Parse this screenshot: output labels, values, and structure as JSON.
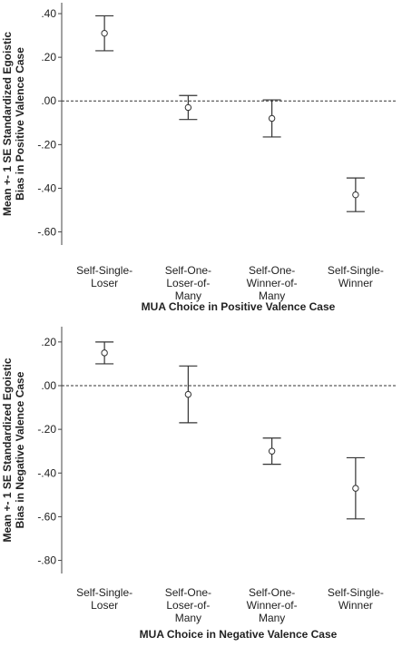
{
  "chart_data": [
    {
      "type": "errorbar",
      "ylabel": [
        "Mean +- 1 SE Standardized Egoistic",
        "Bias in Positive Valence Case"
      ],
      "xlabel": "MUA Choice in Positive Valence Case",
      "categories": [
        "Self-Single-Loser",
        "Self-One-Loser-of-Many",
        "Self-One-Winner-of-Many",
        "Self-Single-Winner"
      ],
      "values": [
        0.31,
        -0.03,
        -0.08,
        -0.43
      ],
      "errors": [
        0.08,
        0.055,
        0.085,
        0.077
      ],
      "ylim": [
        0.45,
        -0.66
      ],
      "yticks": [
        {
          "value": 0.4,
          "label": ".40"
        },
        {
          "value": 0.2,
          "label": ".20"
        },
        {
          "value": 0,
          "label": ".00"
        },
        {
          "value": -0.2,
          "label": "-.20"
        },
        {
          "value": -0.4,
          "label": "-.40"
        },
        {
          "value": -0.6,
          "label": "-.60"
        }
      ],
      "reference_line": 0,
      "color": "#333333"
    },
    {
      "type": "errorbar",
      "ylabel": [
        "Mean +- 1 SE Standardized Egoistic",
        "Bias in Negative Valence Case"
      ],
      "xlabel": "MUA Choice in Negative Valence Case",
      "categories": [
        "Self-Single-Loser",
        "Self-One-Loser-of-Many",
        "Self-One-Winner-of-Many",
        "Self-Single-Winner"
      ],
      "values": [
        0.15,
        -0.04,
        -0.3,
        -0.47
      ],
      "errors": [
        0.05,
        0.13,
        0.06,
        0.14
      ],
      "ylim": [
        0.27,
        -0.86
      ],
      "yticks": [
        {
          "value": 0.2,
          "label": ".20"
        },
        {
          "value": 0,
          "label": ".00"
        },
        {
          "value": -0.2,
          "label": "-.20"
        },
        {
          "value": -0.4,
          "label": "-.40"
        },
        {
          "value": -0.6,
          "label": "-.60"
        },
        {
          "value": -0.8,
          "label": "-.80"
        }
      ],
      "reference_line": 0,
      "color": "#333333"
    }
  ]
}
